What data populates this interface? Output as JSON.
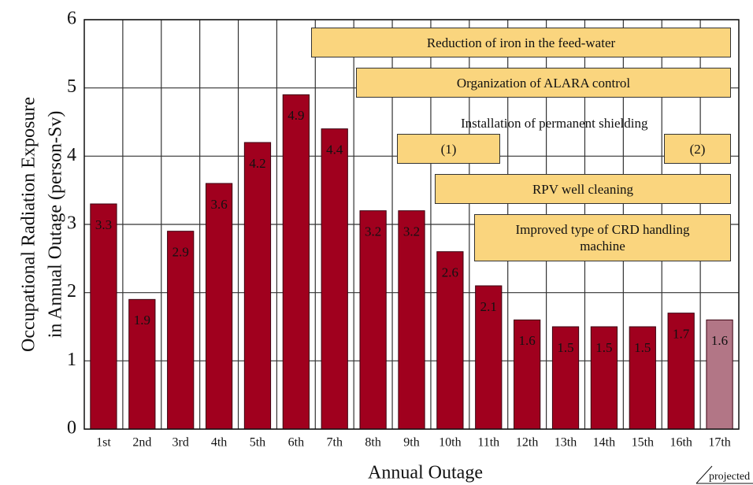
{
  "chart_data": {
    "type": "bar",
    "xlabel": "Annual Outage",
    "ylabel": [
      "Occupational Radiation Exposure",
      "in Annual Outage (person-Sv)"
    ],
    "categories": [
      "1st",
      "2nd",
      "3rd",
      "4th",
      "5th",
      "6th",
      "7th",
      "8th",
      "9th",
      "10th",
      "11th",
      "12th",
      "13th",
      "14th",
      "15th",
      "16th",
      "17th"
    ],
    "values": [
      3.3,
      1.9,
      2.9,
      3.6,
      4.2,
      4.9,
      4.4,
      3.2,
      3.2,
      2.6,
      2.1,
      1.6,
      1.5,
      1.5,
      1.5,
      1.7,
      1.6
    ],
    "colors": [
      "#a0001e",
      "#a0001e",
      "#a0001e",
      "#a0001e",
      "#a0001e",
      "#a0001e",
      "#a0001e",
      "#a0001e",
      "#a0001e",
      "#a0001e",
      "#a0001e",
      "#a0001e",
      "#a0001e",
      "#a0001e",
      "#a0001e",
      "#a0001e",
      "#b27686"
    ],
    "ylim": [
      0,
      6
    ],
    "yticks": [
      0,
      1,
      2,
      3,
      4,
      5,
      6
    ],
    "grid": true,
    "annotations": [
      "Reduction of iron in the feed-water",
      "Organization of ALARA control",
      "Installation of permanent shielding",
      "(1)",
      "(2)",
      "RPV well cleaning",
      "Improved type of CRD handling machine",
      "projected"
    ]
  }
}
